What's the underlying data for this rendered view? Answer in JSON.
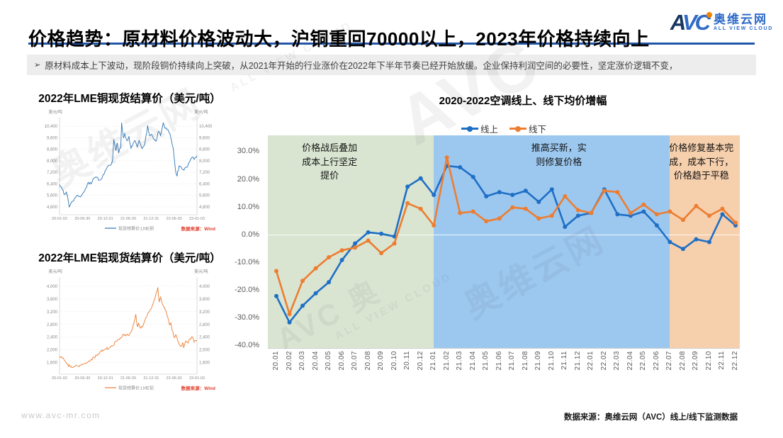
{
  "header": {
    "title": "价格趋势：原材料价格波动大，沪铜重回70000以上，2023年价格持续向上",
    "subtitle_bullet": "➢",
    "subtitle": "原材料成本上下波动，现阶段铜价持续向上突破，从2021年开始的行业涨价在2022年下半年节奏已经开始放缓。企业保持利润空间的必要性，坚定涨价逻辑不变，",
    "logo": {
      "mark": "AVC",
      "cn": "奥维云网",
      "en": "ALL VIEW CLOUD",
      "blue": "#2E6BC6",
      "navy": "#17355E",
      "dot_orange": "#F08300"
    }
  },
  "footer": {
    "url": "www.avc-mr.com",
    "source": "数据来源：奥维云网（AVC）线上/线下监测数据"
  },
  "watermarks": [
    "奥维云网",
    "ALL VIEW CLOUD",
    "AVC",
    "奥维云网",
    "ALL VIEW CLOUD",
    "AVC 奥"
  ],
  "chart_data": [
    {
      "id": "lme_copper",
      "type": "line",
      "title": "2022年LME铜现货结算价（美元/吨）",
      "unit_label": "美元/吨",
      "series_name": "现货结算价:LME铜",
      "color": "#2E75B6",
      "source": "数据来源：Wind",
      "x_ticks": [
        "20-01-02",
        "20-06-30",
        "20-12-31",
        "21-06-30",
        "21-12-31",
        "22-06-30",
        "23-01-03"
      ],
      "y_ticks": [
        10400,
        9600,
        8800,
        8000,
        7200,
        6400,
        5600,
        4800
      ],
      "ylim": [
        4400,
        10800
      ],
      "points": [
        [
          0,
          6350
        ],
        [
          0.02,
          6000
        ],
        [
          0.035,
          5650
        ],
        [
          0.05,
          5850
        ],
        [
          0.06,
          5450
        ],
        [
          0.07,
          4800
        ],
        [
          0.08,
          4950
        ],
        [
          0.09,
          5150
        ],
        [
          0.11,
          5400
        ],
        [
          0.13,
          5600
        ],
        [
          0.15,
          5500
        ],
        [
          0.17,
          5750
        ],
        [
          0.19,
          6100
        ],
        [
          0.21,
          6500
        ],
        [
          0.23,
          6400
        ],
        [
          0.25,
          6800
        ],
        [
          0.27,
          6850
        ],
        [
          0.29,
          6650
        ],
        [
          0.31,
          6800
        ],
        [
          0.33,
          7250
        ],
        [
          0.35,
          7600
        ],
        [
          0.37,
          7700
        ],
        [
          0.385,
          7900
        ],
        [
          0.395,
          9500
        ],
        [
          0.41,
          8700
        ],
        [
          0.42,
          9250
        ],
        [
          0.43,
          8550
        ],
        [
          0.445,
          8900
        ],
        [
          0.452,
          10650
        ],
        [
          0.465,
          9600
        ],
        [
          0.475,
          9900
        ],
        [
          0.49,
          9400
        ],
        [
          0.505,
          9700
        ],
        [
          0.52,
          8850
        ],
        [
          0.535,
          9200
        ],
        [
          0.55,
          9400
        ],
        [
          0.565,
          8950
        ],
        [
          0.58,
          9400
        ],
        [
          0.6,
          8850
        ],
        [
          0.62,
          9150
        ],
        [
          0.641,
          10450
        ],
        [
          0.655,
          9750
        ],
        [
          0.67,
          9850
        ],
        [
          0.69,
          9450
        ],
        [
          0.705,
          9400
        ],
        [
          0.72,
          10050
        ],
        [
          0.735,
          9750
        ],
        [
          0.755,
          10650
        ],
        [
          0.77,
          10250
        ],
        [
          0.79,
          10150
        ],
        [
          0.81,
          9600
        ],
        [
          0.828,
          8850
        ],
        [
          0.843,
          7400
        ],
        [
          0.855,
          6950
        ],
        [
          0.87,
          7650
        ],
        [
          0.89,
          7450
        ],
        [
          0.905,
          7350
        ],
        [
          0.925,
          7550
        ],
        [
          0.945,
          7900
        ],
        [
          0.965,
          8250
        ],
        [
          0.98,
          8100
        ],
        [
          1,
          8350
        ]
      ]
    },
    {
      "id": "lme_aluminum",
      "type": "line",
      "title": "2022年LME铝现货结算价（美元/吨）",
      "unit_label": "美元/吨",
      "series_name": "现货结算价:LME铝",
      "color": "#ED7D31",
      "source": "数据来源：Wind",
      "x_ticks": [
        "20-01-02",
        "20-06-30",
        "20-12-31",
        "21-06-30",
        "21-12-31",
        "22-06-30",
        "23-01-03"
      ],
      "y_ticks": [
        4000,
        3600,
        3200,
        2800,
        2400,
        2000,
        1600
      ],
      "ylim": [
        1300,
        4200
      ],
      "points": [
        [
          0,
          1790
        ],
        [
          0.02,
          1740
        ],
        [
          0.04,
          1650
        ],
        [
          0.06,
          1550
        ],
        [
          0.075,
          1480
        ],
        [
          0.09,
          1445
        ],
        [
          0.11,
          1470
        ],
        [
          0.13,
          1500
        ],
        [
          0.15,
          1520
        ],
        [
          0.17,
          1545
        ],
        [
          0.19,
          1580
        ],
        [
          0.21,
          1640
        ],
        [
          0.23,
          1700
        ],
        [
          0.25,
          1775
        ],
        [
          0.27,
          1820
        ],
        [
          0.285,
          1860
        ],
        [
          0.3,
          1945
        ],
        [
          0.32,
          2000
        ],
        [
          0.34,
          2045
        ],
        [
          0.355,
          2030
        ],
        [
          0.37,
          2085
        ],
        [
          0.39,
          2130
        ],
        [
          0.41,
          2270
        ],
        [
          0.43,
          2330
        ],
        [
          0.45,
          2380
        ],
        [
          0.465,
          2480
        ],
        [
          0.48,
          2440
        ],
        [
          0.5,
          2450
        ],
        [
          0.52,
          2560
        ],
        [
          0.545,
          2915
        ],
        [
          0.555,
          3120
        ],
        [
          0.565,
          2750
        ],
        [
          0.575,
          2850
        ],
        [
          0.59,
          2680
        ],
        [
          0.61,
          2790
        ],
        [
          0.63,
          3020
        ],
        [
          0.65,
          3180
        ],
        [
          0.665,
          3280
        ],
        [
          0.68,
          3450
        ],
        [
          0.7,
          3720
        ],
        [
          0.715,
          3965
        ],
        [
          0.725,
          3520
        ],
        [
          0.735,
          3660
        ],
        [
          0.75,
          3420
        ],
        [
          0.765,
          3320
        ],
        [
          0.78,
          3120
        ],
        [
          0.8,
          2790
        ],
        [
          0.81,
          2850
        ],
        [
          0.822,
          2580
        ],
        [
          0.835,
          2385
        ],
        [
          0.85,
          2450
        ],
        [
          0.865,
          2245
        ],
        [
          0.88,
          2115
        ],
        [
          0.895,
          2215
        ],
        [
          0.905,
          2080
        ],
        [
          0.92,
          2280
        ],
        [
          0.935,
          2215
        ],
        [
          0.95,
          2345
        ],
        [
          0.965,
          2415
        ],
        [
          0.98,
          2245
        ],
        [
          1,
          2300
        ]
      ]
    },
    {
      "id": "avg_price_growth",
      "type": "line",
      "title": "2020-2022空调线上、线下均价增幅",
      "categories": [
        "20.01",
        "20.02",
        "20.03",
        "20.04",
        "20.05",
        "20.06",
        "20.07",
        "20.08",
        "20.09",
        "20.10",
        "20.11",
        "20.12",
        "21.01",
        "21.02",
        "21.03",
        "21.04",
        "21.05",
        "21.06",
        "21.07",
        "21.08",
        "21.09",
        "21.10",
        "21.11",
        "21.12",
        "22.01",
        "22.02",
        "22.03",
        "22.04",
        "22.05",
        "22.06",
        "22.07",
        "22.08",
        "22.09",
        "22.10",
        "22.11",
        "22.12"
      ],
      "series": [
        {
          "name": "线上",
          "color": "#1F6FC5",
          "values": [
            -22,
            -31.5,
            -25.5,
            -21,
            -17,
            -9,
            -3,
            1,
            0.5,
            -0.5,
            17.5,
            20.5,
            14.5,
            25,
            24.5,
            21,
            14,
            15.5,
            14.5,
            16,
            12,
            16.5,
            3,
            7,
            8,
            16.5,
            7.5,
            7,
            8.5,
            3.5,
            -2.5,
            -5,
            -1.5,
            -2.5,
            7.5,
            3.5
          ]
        },
        {
          "name": "线下",
          "color": "#ED7D31",
          "values": [
            -13,
            -28.5,
            -16.5,
            -12,
            -8,
            -5.5,
            -4.5,
            -2,
            -6.5,
            -3,
            11.5,
            9.5,
            3.5,
            28,
            8,
            8.5,
            5,
            6,
            10,
            9.5,
            6,
            7,
            14,
            9,
            8,
            16,
            15.5,
            8,
            11,
            7.5,
            8.5,
            5.5,
            10.5,
            7,
            9.5,
            4.5
          ]
        }
      ],
      "y_ticks": [
        30,
        20,
        10,
        0,
        -10,
        -20,
        -30,
        -40
      ],
      "ylim": [
        -41,
        36
      ],
      "grid": "zero-line-only",
      "legend_position": "top",
      "zones": [
        {
          "annotation": "价格战后叠加\n成本上行坚定\n提价",
          "color": "#D9E5D1",
          "from": 0,
          "to": 12
        },
        {
          "annotation": "推高买新，实\n则修复价格",
          "color": "#9CC8F0",
          "from": 12,
          "to": 30
        },
        {
          "annotation": "价格修复基本完\n成，成本下行，\n价格趋于平稳",
          "color": "#F6CFAC",
          "from": 30,
          "to": 36
        }
      ]
    }
  ]
}
